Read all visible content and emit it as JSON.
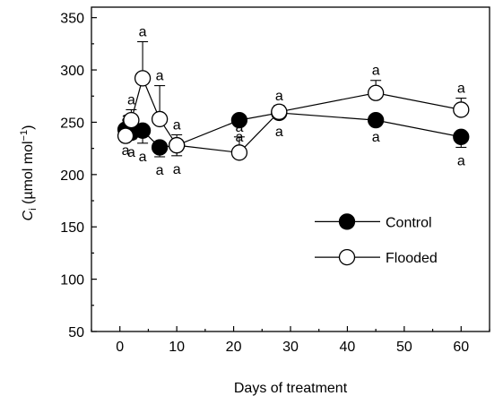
{
  "chart_data": {
    "type": "line",
    "xlabel": "Days of treatment",
    "ylabel_main": "C",
    "ylabel_sub": "i",
    "ylabel_unit_open": " (µmol mol",
    "ylabel_unit_sup": "−1",
    "ylabel_unit_close": ")",
    "xlim": [
      -5,
      65
    ],
    "ylim": [
      50,
      360
    ],
    "xticks": [
      0,
      10,
      20,
      30,
      40,
      50,
      60
    ],
    "yticks": [
      50,
      100,
      150,
      200,
      250,
      300,
      350
    ],
    "grid": false,
    "legend_position": "center-right",
    "series": [
      {
        "name": "Control",
        "marker": "filled-circle",
        "color": "#000000",
        "x": [
          1,
          2,
          4,
          7,
          10,
          21,
          28,
          45,
          60
        ],
        "y": [
          243,
          240,
          242,
          226,
          228,
          252,
          259,
          252,
          236
        ],
        "err": [
          7,
          6,
          12,
          9,
          10,
          0,
          5,
          0,
          10
        ],
        "sig": [
          "a",
          "a",
          "a",
          "a",
          "a",
          "a",
          "a",
          "a",
          "a"
        ]
      },
      {
        "name": "Flooded",
        "marker": "open-circle",
        "color": "#000000",
        "x": [
          1,
          2,
          4,
          7,
          10,
          21,
          28,
          45,
          60
        ],
        "y": [
          237,
          252,
          292,
          253,
          228,
          221,
          260,
          278,
          262
        ],
        "err": [
          8,
          10,
          35,
          32,
          10,
          15,
          6,
          12,
          11
        ],
        "sig": [
          "a",
          "a",
          "a",
          "a",
          "a",
          "a",
          "a",
          "a",
          "a"
        ]
      }
    ]
  }
}
